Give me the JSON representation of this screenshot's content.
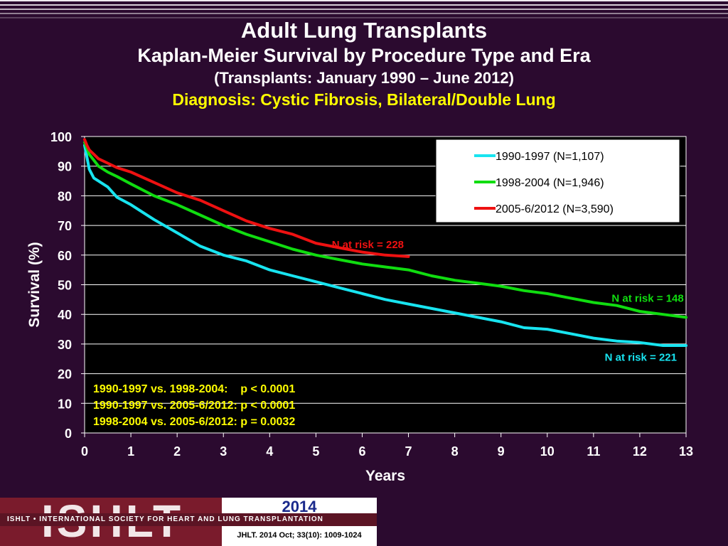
{
  "header": {
    "title": "Adult Lung Transplants",
    "subtitle": "Kaplan-Meier Survival by Procedure Type and Era",
    "date_range": "(Transplants: January 1990 – June 2012)",
    "diagnosis": "Diagnosis: Cystic Fibrosis, Bilateral/Double Lung"
  },
  "footer": {
    "logo_text": "ISHLT",
    "org_name": "ISHLT • INTERNATIONAL SOCIETY FOR HEART AND LUNG TRANSPLANTATION",
    "year": "2014",
    "citation": "JHLT. 2014 Oct; 33(10): 1009-1024"
  },
  "colors": {
    "background": "#2b0a2f",
    "plot_background": "#000000",
    "cyan": "#18e4f0",
    "green": "#10dd10",
    "red": "#ee1111",
    "yellow_text": "#ffff00"
  },
  "chart_data": {
    "type": "line",
    "xlabel": "Years",
    "ylabel": "Survival (%)",
    "xlim": [
      0,
      13
    ],
    "ylim": [
      0,
      100
    ],
    "xticks": [
      0,
      1,
      2,
      3,
      4,
      5,
      6,
      7,
      8,
      9,
      10,
      11,
      12,
      13
    ],
    "yticks": [
      0,
      10,
      20,
      30,
      40,
      50,
      60,
      70,
      80,
      90,
      100
    ],
    "grid": true,
    "legend_position": "top-right",
    "series": [
      {
        "name": "1990-1997 (N=1,107)",
        "color": "#18e4f0",
        "x": [
          0,
          0.05,
          0.1,
          0.2,
          0.3,
          0.5,
          0.7,
          1.0,
          1.5,
          2.0,
          2.5,
          3.0,
          3.5,
          4.0,
          4.5,
          5.0,
          5.5,
          6.0,
          6.5,
          7.0,
          7.5,
          8.0,
          8.5,
          9.0,
          9.5,
          10.0,
          10.5,
          11.0,
          11.5,
          12.0,
          12.5,
          13.0
        ],
        "y": [
          97,
          93,
          89,
          86,
          85,
          83,
          79.5,
          77,
          72,
          67.5,
          63,
          60,
          58,
          55,
          53,
          51,
          49,
          47,
          45,
          43.5,
          42,
          40.5,
          39,
          37.5,
          35.5,
          35,
          33.5,
          32,
          31,
          30.5,
          29.5,
          29.5
        ]
      },
      {
        "name": "1998-2004 (N=1,946)",
        "color": "#10dd10",
        "x": [
          0,
          0.05,
          0.1,
          0.2,
          0.3,
          0.5,
          0.7,
          1.0,
          1.5,
          2.0,
          2.5,
          3.0,
          3.5,
          4.0,
          4.5,
          5.0,
          5.5,
          6.0,
          6.5,
          7.0,
          7.5,
          8.0,
          8.5,
          9.0,
          9.5,
          10.0,
          10.5,
          11.0,
          11.5,
          12.0,
          12.5,
          13.0
        ],
        "y": [
          98,
          96,
          94,
          92,
          90,
          88,
          86.5,
          84,
          80,
          77,
          73.5,
          70,
          67,
          64.5,
          62,
          60,
          58.5,
          57,
          56,
          55,
          53,
          51.5,
          50.5,
          49.5,
          48,
          47,
          45.5,
          44,
          43,
          41,
          40,
          39
        ]
      },
      {
        "name": "2005-6/2012 (N=3,590)",
        "color": "#ee1111",
        "x": [
          0,
          0.05,
          0.1,
          0.2,
          0.3,
          0.5,
          0.7,
          1.0,
          1.5,
          2.0,
          2.5,
          3.0,
          3.5,
          4.0,
          4.5,
          5.0,
          5.5,
          6.0,
          6.5,
          7.0
        ],
        "y": [
          99,
          97,
          95.5,
          94,
          92.5,
          91,
          89.5,
          88,
          84.5,
          81,
          78.5,
          75,
          71.5,
          69,
          67,
          64,
          62.5,
          61,
          60,
          59.5
        ]
      }
    ],
    "annotations": [
      {
        "text": "N at risk = 228",
        "color": "#ee1111",
        "x": 6.9,
        "y": 63.5
      },
      {
        "text": "N at risk = 148",
        "color": "#10dd10",
        "x": 12.95,
        "y": 45.5
      },
      {
        "text": "N at risk = 221",
        "color": "#18e4f0",
        "x": 12.8,
        "y": 25.5
      }
    ],
    "pvalue_lines": [
      "1990-1997 vs. 1998-2004:    p < 0.0001",
      "1990-1997 vs. 2005-6/2012: p < 0.0001",
      "1998-2004 vs. 2005-6/2012: p = 0.0032"
    ]
  }
}
